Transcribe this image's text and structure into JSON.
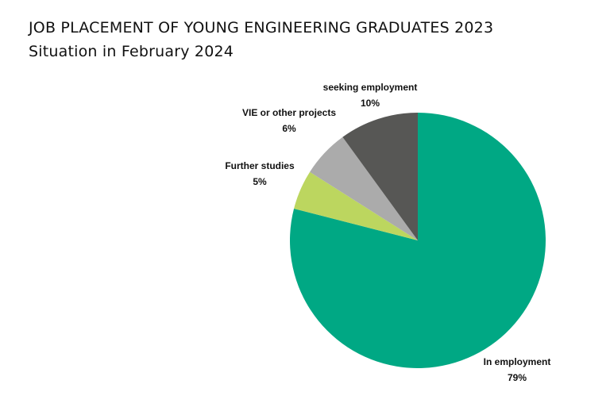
{
  "header": {
    "title": "JOB PLACEMENT OF YOUNG ENGINEERING GRADUATES 2023",
    "subtitle": "Situation in February 2024"
  },
  "chart_data": {
    "type": "pie",
    "title": "JOB PLACEMENT OF YOUNG ENGINEERING GRADUATES 2023",
    "subtitle": "Situation in February 2024",
    "start": "12 o'clock, clockwise",
    "slices": [
      {
        "label": "In employment",
        "value": 79,
        "value_label": "79%",
        "color": "#00a884"
      },
      {
        "label": "Further studies",
        "value": 5,
        "value_label": "5%",
        "color": "#bcd65f"
      },
      {
        "label": "VIE or other projects",
        "value": 6,
        "value_label": "6%",
        "color": "#ababab"
      },
      {
        "label": "seeking employment",
        "value": 10,
        "value_label": "10%",
        "color": "#575755"
      }
    ]
  }
}
